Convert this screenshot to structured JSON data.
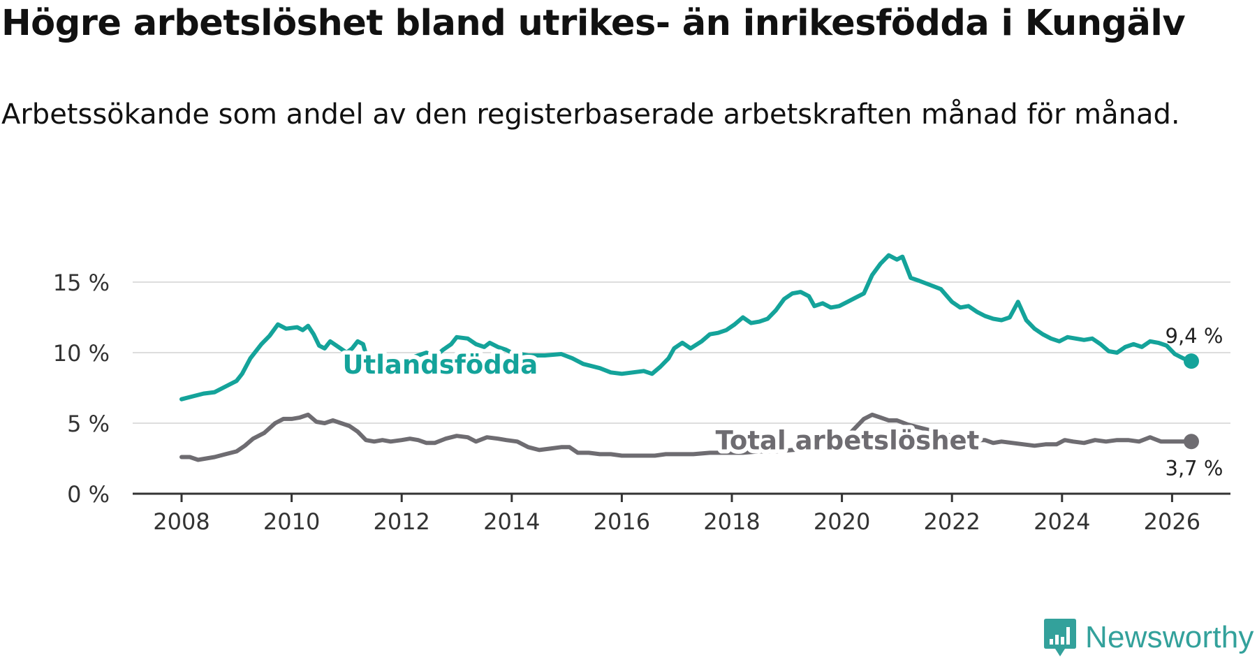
{
  "header": {
    "title": "Högre arbetslöshet bland utrikes- än inrikesfödda i Kungälv",
    "subtitle": "Arbetssökande som andel av den registerbaserade arbetskraften månad för månad."
  },
  "brand": {
    "name": "Newsworthy"
  },
  "colors": {
    "utlandsfodda": "#14a39a",
    "total": "#6e6c71",
    "grid": "#dddddd",
    "axis": "#333333",
    "text": "#333333",
    "brand": "#33a19b"
  },
  "chart_data": {
    "type": "line",
    "title": "Högre arbetslöshet bland utrikes- än inrikesfödda i Kungälv",
    "subtitle": "Arbetssökande som andel av den registerbaserade arbetskraften månad för månad.",
    "xlabel": "",
    "ylabel": "",
    "xlim": [
      2007.1,
      2026.5
    ],
    "ylim": [
      0,
      17.5
    ],
    "x_ticks": [
      2008,
      2010,
      2012,
      2014,
      2016,
      2018,
      2020,
      2022,
      2024,
      2026
    ],
    "x_tick_labels": [
      "2008",
      "2010",
      "2012",
      "2014",
      "2016",
      "2018",
      "2020",
      "2022",
      "2024",
      "2026"
    ],
    "y_ticks": [
      0,
      5,
      10,
      15
    ],
    "y_tick_labels": [
      "0 %",
      "5 %",
      "10 %",
      "15 %"
    ],
    "grid": true,
    "series": [
      {
        "name": "Utlandsfödda",
        "color": "#14a39a",
        "label_at": [
          2012.7,
          9.1
        ],
        "end_label": "9,4 %",
        "points": [
          [
            2008.0,
            6.7
          ],
          [
            2008.2,
            6.9
          ],
          [
            2008.4,
            7.1
          ],
          [
            2008.6,
            7.2
          ],
          [
            2008.8,
            7.6
          ],
          [
            2009.0,
            8.0
          ],
          [
            2009.1,
            8.5
          ],
          [
            2009.25,
            9.6
          ],
          [
            2009.45,
            10.6
          ],
          [
            2009.6,
            11.2
          ],
          [
            2009.75,
            12.0
          ],
          [
            2009.9,
            11.7
          ],
          [
            2010.1,
            11.8
          ],
          [
            2010.2,
            11.6
          ],
          [
            2010.3,
            11.9
          ],
          [
            2010.4,
            11.3
          ],
          [
            2010.5,
            10.5
          ],
          [
            2010.6,
            10.3
          ],
          [
            2010.7,
            10.8
          ],
          [
            2010.85,
            10.4
          ],
          [
            2011.0,
            10.0
          ],
          [
            2011.1,
            10.3
          ],
          [
            2011.2,
            10.8
          ],
          [
            2011.3,
            10.6
          ],
          [
            2011.4,
            9.2
          ],
          [
            2011.55,
            9.5
          ],
          [
            2011.7,
            9.7
          ],
          [
            2011.85,
            9.3
          ],
          [
            2012.0,
            9.5
          ],
          [
            2012.15,
            9.6
          ],
          [
            2012.3,
            9.8
          ],
          [
            2012.45,
            10.0
          ],
          [
            2012.6,
            9.7
          ],
          [
            2012.75,
            10.2
          ],
          [
            2012.9,
            10.6
          ],
          [
            2013.0,
            11.1
          ],
          [
            2013.2,
            11.0
          ],
          [
            2013.35,
            10.6
          ],
          [
            2013.5,
            10.4
          ],
          [
            2013.6,
            10.7
          ],
          [
            2013.75,
            10.4
          ],
          [
            2013.9,
            10.2
          ],
          [
            2014.0,
            10.0
          ],
          [
            2014.3,
            9.8
          ],
          [
            2014.6,
            9.8
          ],
          [
            2014.9,
            9.9
          ],
          [
            2015.1,
            9.6
          ],
          [
            2015.3,
            9.2
          ],
          [
            2015.6,
            8.9
          ],
          [
            2015.8,
            8.6
          ],
          [
            2016.0,
            8.5
          ],
          [
            2016.2,
            8.6
          ],
          [
            2016.4,
            8.7
          ],
          [
            2016.55,
            8.5
          ],
          [
            2016.7,
            9.0
          ],
          [
            2016.85,
            9.6
          ],
          [
            2016.95,
            10.3
          ],
          [
            2017.1,
            10.7
          ],
          [
            2017.25,
            10.3
          ],
          [
            2017.45,
            10.8
          ],
          [
            2017.6,
            11.3
          ],
          [
            2017.75,
            11.4
          ],
          [
            2017.9,
            11.6
          ],
          [
            2018.05,
            12.0
          ],
          [
            2018.2,
            12.5
          ],
          [
            2018.35,
            12.1
          ],
          [
            2018.5,
            12.2
          ],
          [
            2018.65,
            12.4
          ],
          [
            2018.8,
            13.0
          ],
          [
            2018.95,
            13.8
          ],
          [
            2019.1,
            14.2
          ],
          [
            2019.25,
            14.3
          ],
          [
            2019.4,
            14.0
          ],
          [
            2019.5,
            13.3
          ],
          [
            2019.65,
            13.5
          ],
          [
            2019.8,
            13.2
          ],
          [
            2019.95,
            13.3
          ],
          [
            2020.1,
            13.6
          ],
          [
            2020.25,
            13.9
          ],
          [
            2020.4,
            14.2
          ],
          [
            2020.55,
            15.5
          ],
          [
            2020.7,
            16.3
          ],
          [
            2020.85,
            16.9
          ],
          [
            2021.0,
            16.6
          ],
          [
            2021.1,
            16.8
          ],
          [
            2021.25,
            15.3
          ],
          [
            2021.4,
            15.1
          ],
          [
            2021.6,
            14.8
          ],
          [
            2021.8,
            14.5
          ],
          [
            2022.0,
            13.6
          ],
          [
            2022.15,
            13.2
          ],
          [
            2022.3,
            13.3
          ],
          [
            2022.45,
            12.9
          ],
          [
            2022.6,
            12.6
          ],
          [
            2022.75,
            12.4
          ],
          [
            2022.9,
            12.3
          ],
          [
            2023.05,
            12.5
          ],
          [
            2023.2,
            13.6
          ],
          [
            2023.35,
            12.3
          ],
          [
            2023.5,
            11.7
          ],
          [
            2023.65,
            11.3
          ],
          [
            2023.8,
            11.0
          ],
          [
            2023.95,
            10.8
          ],
          [
            2024.1,
            11.1
          ],
          [
            2024.25,
            11.0
          ],
          [
            2024.4,
            10.9
          ],
          [
            2024.55,
            11.0
          ],
          [
            2024.7,
            10.6
          ],
          [
            2024.85,
            10.1
          ],
          [
            2025.0,
            10.0
          ],
          [
            2025.15,
            10.4
          ],
          [
            2025.3,
            10.6
          ],
          [
            2025.45,
            10.4
          ],
          [
            2025.6,
            10.8
          ],
          [
            2025.75,
            10.7
          ],
          [
            2025.9,
            10.5
          ],
          [
            2026.05,
            9.9
          ],
          [
            2026.2,
            9.6
          ],
          [
            2026.35,
            9.4
          ]
        ]
      },
      {
        "name": "Total arbetslöshet",
        "color": "#6e6c71",
        "label_at": [
          2020.1,
          3.75
        ],
        "end_label": "3,7 %",
        "points": [
          [
            2008.0,
            2.6
          ],
          [
            2008.15,
            2.6
          ],
          [
            2008.3,
            2.4
          ],
          [
            2008.45,
            2.5
          ],
          [
            2008.6,
            2.6
          ],
          [
            2008.8,
            2.8
          ],
          [
            2009.0,
            3.0
          ],
          [
            2009.15,
            3.4
          ],
          [
            2009.3,
            3.9
          ],
          [
            2009.5,
            4.3
          ],
          [
            2009.7,
            5.0
          ],
          [
            2009.85,
            5.3
          ],
          [
            2010.0,
            5.3
          ],
          [
            2010.15,
            5.4
          ],
          [
            2010.3,
            5.6
          ],
          [
            2010.45,
            5.1
          ],
          [
            2010.6,
            5.0
          ],
          [
            2010.75,
            5.2
          ],
          [
            2010.9,
            5.0
          ],
          [
            2011.05,
            4.8
          ],
          [
            2011.2,
            4.4
          ],
          [
            2011.35,
            3.8
          ],
          [
            2011.5,
            3.7
          ],
          [
            2011.65,
            3.8
          ],
          [
            2011.8,
            3.7
          ],
          [
            2012.0,
            3.8
          ],
          [
            2012.15,
            3.9
          ],
          [
            2012.3,
            3.8
          ],
          [
            2012.45,
            3.6
          ],
          [
            2012.6,
            3.6
          ],
          [
            2012.8,
            3.9
          ],
          [
            2013.0,
            4.1
          ],
          [
            2013.2,
            4.0
          ],
          [
            2013.35,
            3.7
          ],
          [
            2013.55,
            4.0
          ],
          [
            2013.75,
            3.9
          ],
          [
            2013.9,
            3.8
          ],
          [
            2014.1,
            3.7
          ],
          [
            2014.3,
            3.3
          ],
          [
            2014.5,
            3.1
          ],
          [
            2014.7,
            3.2
          ],
          [
            2014.9,
            3.3
          ],
          [
            2015.05,
            3.3
          ],
          [
            2015.2,
            2.9
          ],
          [
            2015.4,
            2.9
          ],
          [
            2015.6,
            2.8
          ],
          [
            2015.8,
            2.8
          ],
          [
            2016.0,
            2.7
          ],
          [
            2016.2,
            2.7
          ],
          [
            2016.4,
            2.7
          ],
          [
            2016.6,
            2.7
          ],
          [
            2016.8,
            2.8
          ],
          [
            2017.0,
            2.8
          ],
          [
            2017.3,
            2.8
          ],
          [
            2017.6,
            2.9
          ],
          [
            2017.9,
            2.9
          ],
          [
            2018.2,
            2.9
          ],
          [
            2018.5,
            3.0
          ],
          [
            2018.8,
            3.0
          ],
          [
            2019.1,
            3.1
          ],
          [
            2019.4,
            3.2
          ],
          [
            2019.7,
            3.3
          ],
          [
            2020.0,
            3.6
          ],
          [
            2020.2,
            4.5
          ],
          [
            2020.4,
            5.3
          ],
          [
            2020.55,
            5.6
          ],
          [
            2020.7,
            5.4
          ],
          [
            2020.85,
            5.2
          ],
          [
            2021.0,
            5.2
          ],
          [
            2021.2,
            4.9
          ],
          [
            2021.4,
            4.7
          ],
          [
            2021.6,
            4.5
          ],
          [
            2021.8,
            4.3
          ],
          [
            2022.0,
            4.1
          ],
          [
            2022.2,
            3.9
          ],
          [
            2022.4,
            3.8
          ],
          [
            2022.6,
            3.8
          ],
          [
            2022.75,
            3.6
          ],
          [
            2022.9,
            3.7
          ],
          [
            2023.1,
            3.6
          ],
          [
            2023.3,
            3.5
          ],
          [
            2023.5,
            3.4
          ],
          [
            2023.7,
            3.5
          ],
          [
            2023.9,
            3.5
          ],
          [
            2024.05,
            3.8
          ],
          [
            2024.2,
            3.7
          ],
          [
            2024.4,
            3.6
          ],
          [
            2024.6,
            3.8
          ],
          [
            2024.8,
            3.7
          ],
          [
            2025.0,
            3.8
          ],
          [
            2025.2,
            3.8
          ],
          [
            2025.4,
            3.7
          ],
          [
            2025.6,
            4.0
          ],
          [
            2025.8,
            3.7
          ],
          [
            2026.0,
            3.7
          ],
          [
            2026.35,
            3.7
          ]
        ]
      }
    ]
  }
}
